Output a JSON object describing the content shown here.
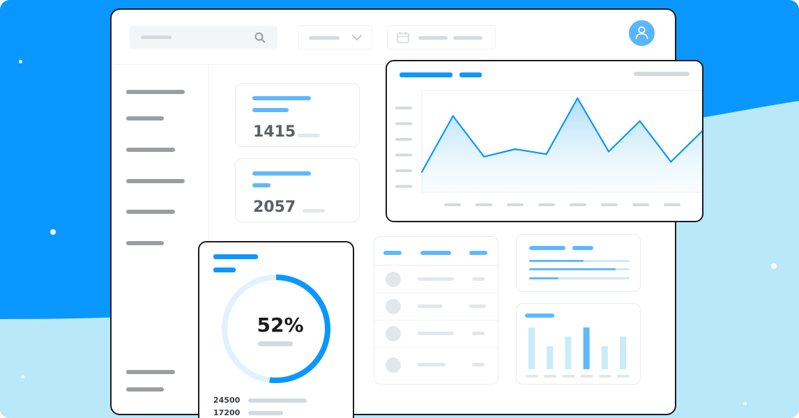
{
  "colors": {
    "background": "#0a97ff",
    "wave": "#b9e9f8",
    "accent": "#0a97ff",
    "accent_light": "#5fb8ff",
    "window_border": "#1b1b1b"
  },
  "icons": {
    "search": "search-icon",
    "dropdown": "chevron-down-icon",
    "date": "calendar-icon",
    "avatar": "user-icon"
  },
  "stats": [
    {
      "value": "1415"
    },
    {
      "value": "2057"
    }
  ],
  "progress": {
    "label": "52%",
    "fraction": 0.52
  },
  "legend_values": [
    "24500",
    "17200"
  ],
  "chart_data": {
    "type": "area",
    "x": [
      0,
      1,
      2,
      3,
      4,
      5,
      6,
      7,
      8,
      9
    ],
    "values": [
      8,
      30,
      14,
      17,
      15,
      37,
      16,
      28,
      12,
      24
    ],
    "ylim": [
      0,
      40
    ],
    "grid": false
  },
  "mini_bar_chart": {
    "type": "bar",
    "values": [
      6,
      3.3,
      4.7,
      6,
      3.3,
      4.7
    ]
  }
}
